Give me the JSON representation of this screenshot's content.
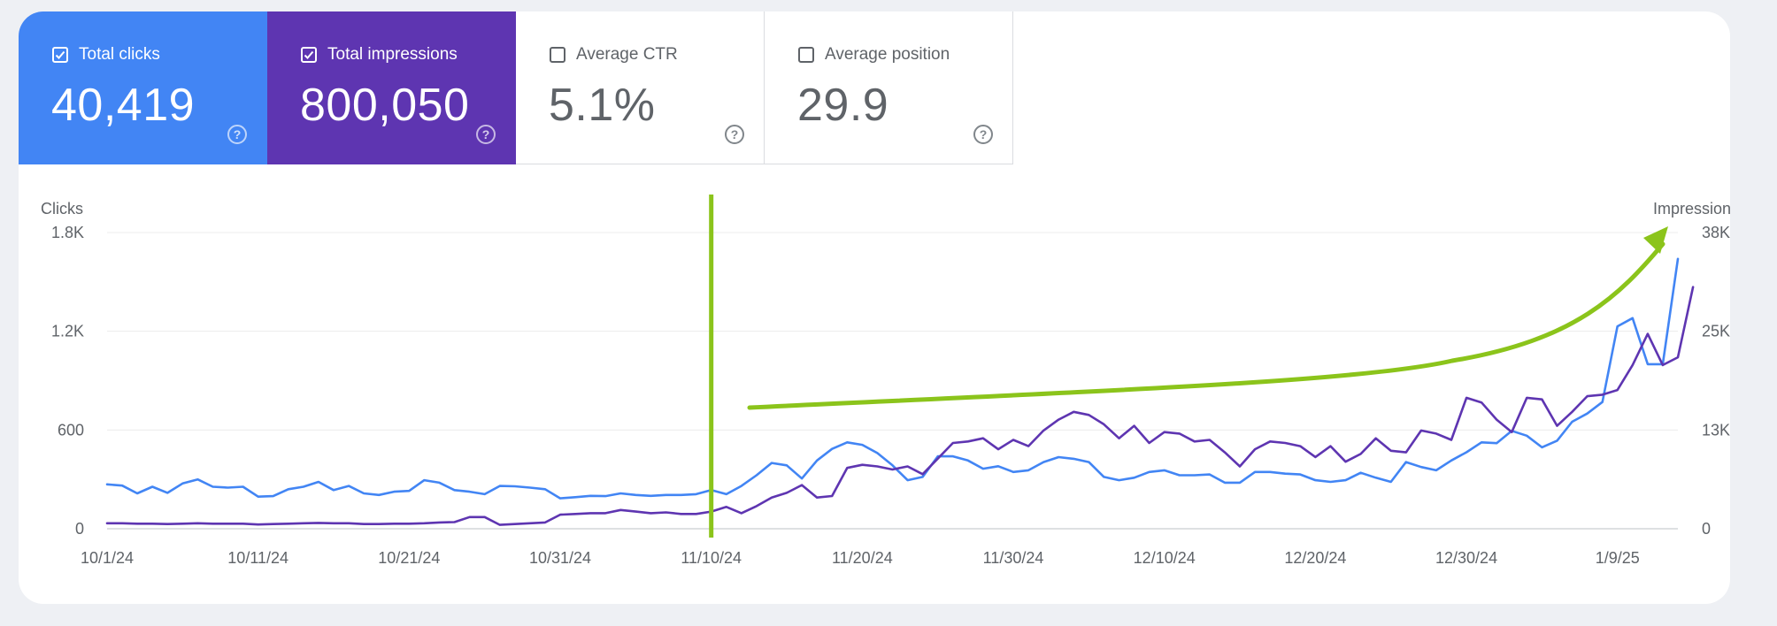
{
  "metrics": [
    {
      "key": "clicks",
      "label": "Total clicks",
      "value": "40,419",
      "checked": true,
      "color": "#4285f4"
    },
    {
      "key": "impressions",
      "label": "Total impressions",
      "value": "800,050",
      "checked": true,
      "color": "#5e35b1"
    },
    {
      "key": "ctr",
      "label": "Average CTR",
      "value": "5.1%",
      "checked": false
    },
    {
      "key": "position",
      "label": "Average position",
      "value": "29.9",
      "checked": false
    }
  ],
  "chart_data": {
    "type": "line",
    "left_axis_label": "Clicks",
    "right_axis_label": "Impressions",
    "left_ticks": [
      "0",
      "600",
      "1.2K",
      "1.8K"
    ],
    "right_ticks": [
      "0",
      "13K",
      "25K",
      "38K"
    ],
    "ylim_left": [
      0,
      1800
    ],
    "ylim_right": [
      0,
      38000
    ],
    "x_ticks": [
      "10/1/24",
      "10/11/24",
      "10/21/24",
      "10/31/24",
      "11/10/24",
      "11/20/24",
      "11/30/24",
      "12/10/24",
      "12/20/24",
      "12/30/24",
      "1/9/25"
    ],
    "x_range_days": [
      0,
      104
    ],
    "grid": true,
    "annotation": {
      "marker_day": 40,
      "note": "green vertical line at 11/10/24 and upward-curving green arrow"
    },
    "series": [
      {
        "axis": "left",
        "color": "#4285f4",
        "values": [
          270,
          262,
          215,
          255,
          218,
          275,
          300,
          255,
          250,
          255,
          195,
          198,
          240,
          255,
          285,
          235,
          260,
          215,
          205,
          225,
          230,
          295,
          280,
          235,
          225,
          210,
          260,
          258,
          250,
          240,
          185,
          192,
          200,
          198,
          215,
          205,
          200,
          205,
          205,
          210,
          235,
          210,
          260,
          325,
          400,
          385,
          305,
          415,
          485,
          525,
          510,
          460,
          385,
          295,
          315,
          440,
          440,
          415,
          365,
          380,
          345,
          355,
          405,
          435,
          425,
          405,
          315,
          295,
          310,
          345,
          355,
          325,
          325,
          330,
          280,
          280,
          345,
          345,
          335,
          330,
          295,
          285,
          295,
          340,
          310,
          285,
          405,
          375,
          355,
          415,
          465,
          525,
          520,
          595,
          565,
          495,
          535,
          650,
          700,
          770,
          1230,
          1280,
          1000,
          1000,
          1640
        ]
      },
      {
        "axis": "right",
        "color": "#5e35b1",
        "values": [
          700,
          700,
          650,
          650,
          600,
          650,
          700,
          650,
          650,
          650,
          550,
          600,
          650,
          700,
          750,
          700,
          700,
          600,
          600,
          650,
          650,
          700,
          800,
          850,
          1500,
          1500,
          500,
          600,
          700,
          800,
          1800,
          1900,
          2000,
          2000,
          2400,
          2200,
          2000,
          2100,
          1900,
          1900,
          2200,
          2800,
          2000,
          2900,
          4000,
          4600,
          5600,
          4000,
          4200,
          7800,
          8200,
          8000,
          7600,
          8000,
          7000,
          9000,
          11000,
          11200,
          11600,
          10200,
          11400,
          10600,
          12600,
          14000,
          15000,
          14600,
          13400,
          11600,
          13200,
          11000,
          12400,
          12200,
          11200,
          11400,
          9800,
          8000,
          10200,
          11200,
          11000,
          10600,
          9200,
          10600,
          8600,
          9600,
          11600,
          10000,
          9800,
          12600,
          12200,
          11400,
          16800,
          16200,
          14000,
          12400,
          16800,
          16600,
          13200,
          15000,
          17000,
          17200,
          17800,
          21000,
          25000,
          21000,
          22000,
          31000
        ]
      }
    ]
  }
}
